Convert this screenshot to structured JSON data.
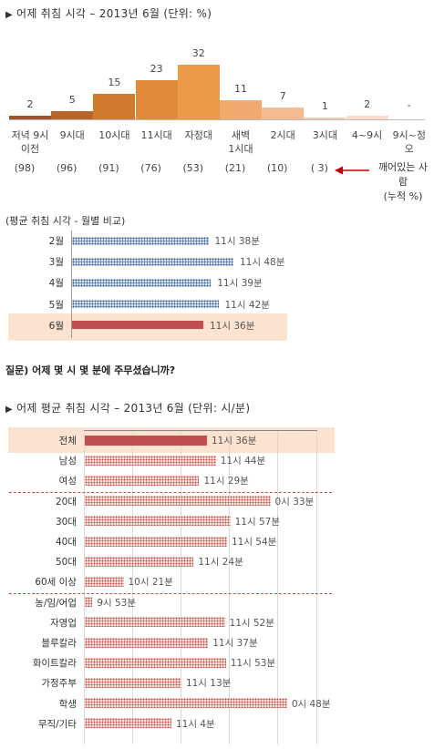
{
  "chart_data": [
    {
      "type": "bar",
      "title": "어제 취침 시각 – 2013년 6월 (단위: %)",
      "categories": [
        "저녁 9시\n이전",
        "9시대",
        "10시대",
        "11시대",
        "자정대",
        "새벽\n1시대",
        "2시대",
        "3시대",
        "4~9시",
        "9시~정오"
      ],
      "values": [
        2,
        5,
        15,
        23,
        32,
        11,
        7,
        1,
        2,
        null
      ],
      "value_labels": [
        "2",
        "5",
        "15",
        "23",
        "32",
        "11",
        "7",
        "1",
        "2",
        "-"
      ],
      "bar_colors": [
        "#a0522d",
        "#b9652a",
        "#d07a30",
        "#e08a3a",
        "#ec9a48",
        "#f0aa70",
        "#f4ba90",
        "#f5ccb0",
        "#f8dcc8",
        "#f8dcc8"
      ],
      "cumulative_labels": [
        "(98)",
        "(96)",
        "(91)",
        "(76)",
        "(53)",
        "(21)",
        "(10)",
        "( 3)"
      ],
      "annotation": "깨어있는 사람\n(누적 %)"
    },
    {
      "type": "bar",
      "orientation": "horizontal",
      "title": "(평균 취침 시각 - 월별 비교)",
      "categories": [
        "2월",
        "3월",
        "4월",
        "5월",
        "6월"
      ],
      "values_minutes_after_23": [
        38,
        48,
        39,
        42,
        36
      ],
      "value_labels": [
        "11시 38분",
        "11시 48분",
        "11시 39분",
        "11시 42분",
        "11시 36분"
      ],
      "highlight": "6월"
    },
    {
      "type": "bar",
      "orientation": "horizontal",
      "title": "어제 평균 취침 시각 – 2013년 6월 (단위: 시/분)",
      "categories": [
        "전체",
        "남성",
        "여성",
        "20대",
        "30대",
        "40대",
        "50대",
        "60세 이상",
        "농/임/어업",
        "자영업",
        "블루칼라",
        "화이트칼라",
        "가정주부",
        "학생",
        "무직/기타"
      ],
      "values_minutes_after_23": [
        36,
        44,
        29,
        93,
        57,
        54,
        24,
        -39,
        -67,
        52,
        37,
        53,
        13,
        108,
        4
      ],
      "value_labels": [
        "11시 36분",
        "11시 44분",
        "11시 29분",
        "0시 33분",
        "11시 57분",
        "11시 54분",
        "11시 24분",
        "10시 21분",
        "9시 53분",
        "11시 52분",
        "11시 37분",
        "11시 53분",
        "11시 13분",
        "0시 48분",
        "11시 4분"
      ],
      "highlight": "전체"
    }
  ],
  "question": "질문) 어제 몇 시 몇 분에 주무셨습니까?",
  "arrow_color": "#c00000"
}
